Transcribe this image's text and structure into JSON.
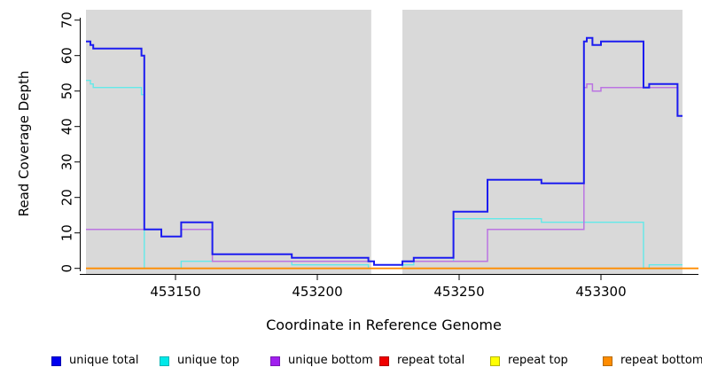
{
  "chart_data": {
    "type": "line",
    "subtype": "step-coverage-plot",
    "title": "",
    "xlabel": "Coordinate in Reference Genome",
    "ylabel": "Read Coverage Depth",
    "xlim": [
      453118,
      453329
    ],
    "ylim": [
      0,
      70
    ],
    "x_ticks": [
      "453150",
      "453200",
      "453250",
      "453300"
    ],
    "x_tick_values": [
      453150,
      453200,
      453250,
      453300
    ],
    "y_ticks": [
      "0",
      "10",
      "20",
      "30",
      "40",
      "50",
      "60",
      "70"
    ],
    "y_tick_values": [
      0,
      10,
      20,
      30,
      40,
      50,
      60,
      70
    ],
    "grid": "off",
    "plot_bg_color": "#d9d9d9",
    "gap_region": {
      "x_start": 453219,
      "x_end": 453230,
      "color": "#ffffff"
    },
    "series": [
      {
        "name": "repeat total",
        "color": "#f00000",
        "points": [
          [
            453118,
            0
          ]
        ],
        "extends_past_plot": true
      },
      {
        "name": "repeat top",
        "color": "#ffff00",
        "points": [
          [
            453118,
            0
          ]
        ],
        "extends_past_plot": true
      },
      {
        "name": "unique top",
        "color": "#63e9e9",
        "points": [
          [
            453118,
            53
          ],
          [
            453120,
            52
          ],
          [
            453121,
            51
          ],
          [
            453138,
            49
          ],
          [
            453139,
            0
          ],
          [
            453152,
            2
          ],
          [
            453191,
            1
          ],
          [
            453218,
            0
          ],
          [
            453230,
            1
          ],
          [
            453234,
            2
          ],
          [
            453248,
            14
          ],
          [
            453279,
            13
          ],
          [
            453315,
            0
          ],
          [
            453317,
            1
          ]
        ],
        "extends_past_plot": false
      },
      {
        "name": "repeat bottom",
        "color": "#ff8c00",
        "points": [
          [
            453118,
            0
          ]
        ],
        "extends_past_plot": true
      },
      {
        "name": "unique bottom",
        "color": "#bb74e2",
        "points": [
          [
            453118,
            11
          ],
          [
            453145,
            9
          ],
          [
            453152,
            11
          ],
          [
            453163,
            2
          ],
          [
            453220,
            1
          ],
          [
            453230,
            2
          ],
          [
            453260,
            11
          ],
          [
            453294,
            51
          ],
          [
            453295,
            52
          ],
          [
            453297,
            50
          ],
          [
            453300,
            51
          ],
          [
            453327,
            43
          ]
        ],
        "extends_past_plot": false
      },
      {
        "name": "unique total",
        "color": "#1c1cf0",
        "points": [
          [
            453118,
            64
          ],
          [
            453120,
            63
          ],
          [
            453121,
            62
          ],
          [
            453138,
            60
          ],
          [
            453139,
            11
          ],
          [
            453145,
            9
          ],
          [
            453152,
            13
          ],
          [
            453163,
            4
          ],
          [
            453191,
            3
          ],
          [
            453218,
            2
          ],
          [
            453220,
            1
          ],
          [
            453230,
            2
          ],
          [
            453234,
            3
          ],
          [
            453248,
            16
          ],
          [
            453260,
            25
          ],
          [
            453279,
            24
          ],
          [
            453294,
            64
          ],
          [
            453295,
            65
          ],
          [
            453297,
            63
          ],
          [
            453300,
            64
          ],
          [
            453315,
            51
          ],
          [
            453317,
            52
          ],
          [
            453327,
            43
          ]
        ],
        "extends_past_plot": false
      }
    ],
    "legend": [
      {
        "label": "unique total",
        "color": "#0000f0",
        "border": "#0000b0"
      },
      {
        "label": "unique top",
        "color": "#00e9e9",
        "border": "#00b5b5"
      },
      {
        "label": "unique bottom",
        "color": "#a11fef",
        "border": "#7a18b5"
      },
      {
        "label": "repeat total",
        "color": "#f00000",
        "border": "#b00000"
      },
      {
        "label": "repeat top",
        "color": "#ffff00",
        "border": "#b5b500"
      },
      {
        "label": "repeat bottom",
        "color": "#ff8c00",
        "border": "#b56a00"
      }
    ],
    "legend_position": "bottom"
  }
}
